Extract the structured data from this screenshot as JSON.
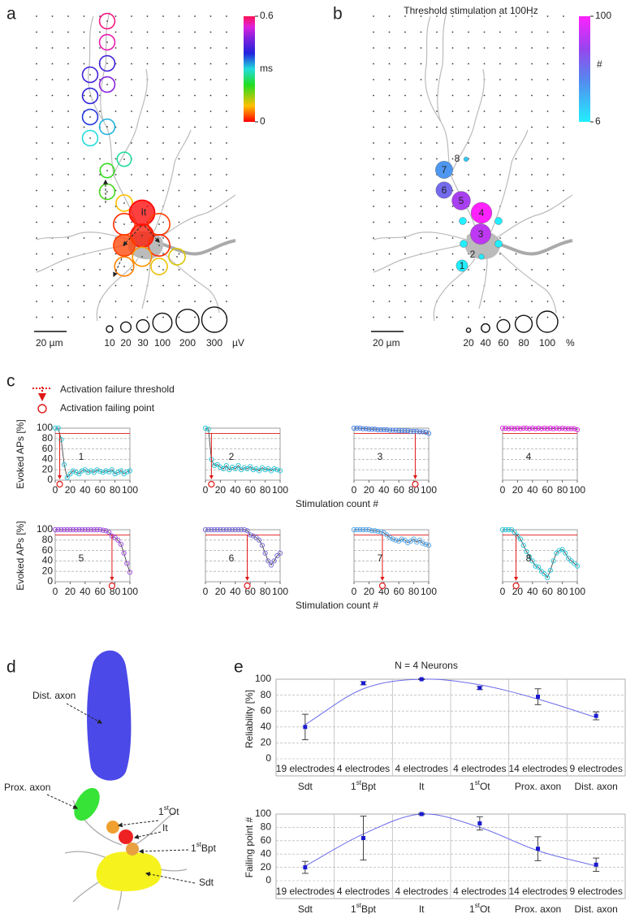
{
  "panel_labels": [
    "a",
    "b",
    "c",
    "d",
    "e"
  ],
  "panel_a": {
    "colorbar": {
      "min": 0,
      "max": 0.6,
      "unit": "ms"
    },
    "size_legend": {
      "values": [
        10,
        20,
        30,
        100,
        200,
        300
      ],
      "unit": "µV"
    },
    "scale_bar": "20 µm",
    "marker_label": "It",
    "electrodes": {
      "latency": [
        0.58,
        0.56,
        0.42,
        0.48,
        0.42,
        0.4,
        0.38,
        0.32,
        0.3,
        0.27,
        0.2,
        0.19,
        0.09,
        0,
        0.02,
        0.03,
        0.01,
        0.03,
        0.02,
        0.07,
        0.06,
        0.11,
        0.1
      ],
      "amplitude": [
        50,
        50,
        50,
        50,
        50,
        50,
        50,
        50,
        50,
        40,
        40,
        50,
        60,
        300,
        150,
        150,
        200,
        150,
        150,
        100,
        100,
        60,
        60
      ]
    }
  },
  "panel_b": {
    "title": "Threshold stimulation at 100Hz",
    "colorbar": {
      "min": 6,
      "max": 100,
      "unit": "#"
    },
    "size_legend": {
      "values": [
        20,
        40,
        60,
        80,
        100
      ],
      "unit": "%"
    },
    "scale_bar": "20 µm",
    "electrodes": {
      "labels": [
        "1",
        "2",
        "3",
        "4",
        "5",
        "6",
        "7",
        "8",
        null,
        null,
        null,
        null
      ],
      "reliability": [
        55,
        25,
        97,
        99,
        88,
        78,
        82,
        22,
        35,
        35,
        35,
        35
      ],
      "failing_point": [
        6,
        8,
        82,
        100,
        76,
        56,
        38,
        18,
        6,
        6,
        6,
        6
      ]
    }
  },
  "panel_c": {
    "legend": [
      "Activation failure threshold",
      "Activation failing point"
    ],
    "xlabel": "Stimulation count #",
    "ylabel": "Evoked APs [%]"
  },
  "panel_d": {
    "labels": [
      "Dist. axon",
      "Prox. axon",
      "1stOt",
      "It",
      "1stBpt",
      "Sdt"
    ]
  },
  "chart_data": [
    {
      "type": "line",
      "label": "1",
      "x": [
        0,
        4,
        8,
        12,
        16,
        20,
        24,
        28,
        32,
        36,
        40,
        44,
        48,
        52,
        56,
        60,
        64,
        68,
        72,
        76,
        80,
        84,
        88,
        92,
        96,
        100
      ],
      "series": [
        {
          "color": "#2cc6d8",
          "values": [
            100,
            100,
            78,
            30,
            5,
            12,
            18,
            15,
            12,
            18,
            20,
            15,
            18,
            15,
            20,
            17,
            15,
            18,
            16,
            20,
            12,
            15,
            18,
            12,
            16,
            18
          ]
        }
      ],
      "threshold": 90,
      "failing_point": 6,
      "xlim": [
        0,
        100
      ],
      "ylim": [
        0,
        100
      ],
      "xticks": [
        0,
        20,
        40,
        60,
        80,
        100
      ],
      "yticks": [
        0,
        20,
        40,
        60,
        80,
        100
      ]
    },
    {
      "type": "line",
      "label": "2",
      "x": [
        0,
        4,
        8,
        12,
        16,
        20,
        24,
        28,
        32,
        36,
        40,
        44,
        48,
        52,
        56,
        60,
        64,
        68,
        72,
        76,
        80,
        84,
        88,
        92,
        96,
        100
      ],
      "series": [
        {
          "color": "#30c8d6",
          "values": [
            100,
            98,
            40,
            28,
            30,
            25,
            22,
            28,
            20,
            25,
            22,
            28,
            20,
            24,
            22,
            26,
            20,
            22,
            18,
            24,
            20,
            22,
            18,
            22,
            20,
            18
          ]
        }
      ],
      "threshold": 90,
      "failing_point": 8,
      "xlim": [
        0,
        100
      ],
      "ylim": [
        0,
        100
      ],
      "xticks": [
        0,
        20,
        40,
        60,
        80,
        100
      ],
      "yticks": [
        0,
        20,
        40,
        60,
        80,
        100
      ]
    },
    {
      "type": "line",
      "label": "3",
      "x": [
        0,
        4,
        8,
        12,
        16,
        20,
        24,
        28,
        32,
        36,
        40,
        44,
        48,
        52,
        56,
        60,
        64,
        68,
        72,
        76,
        80,
        84,
        88,
        92,
        96,
        100
      ],
      "series": [
        {
          "color": "#4d84e6",
          "values": [
            100,
            100,
            100,
            99,
            99,
            98,
            98,
            98,
            97,
            97,
            97,
            97,
            96,
            96,
            96,
            95,
            95,
            95,
            95,
            94,
            94,
            94,
            93,
            93,
            92,
            90
          ]
        }
      ],
      "threshold": 90,
      "failing_point": 82,
      "xlim": [
        0,
        100
      ],
      "ylim": [
        0,
        100
      ],
      "xticks": [
        0,
        20,
        40,
        60,
        80,
        100
      ],
      "yticks": [
        0,
        20,
        40,
        60,
        80,
        100
      ]
    },
    {
      "type": "line",
      "label": "4",
      "x": [
        0,
        4,
        8,
        12,
        16,
        20,
        24,
        28,
        32,
        36,
        40,
        44,
        48,
        52,
        56,
        60,
        64,
        68,
        72,
        76,
        80,
        84,
        88,
        92,
        96,
        100
      ],
      "series": [
        {
          "color": "#e02ee0",
          "values": [
            100,
            100,
            99,
            100,
            99,
            100,
            99,
            100,
            100,
            99,
            100,
            99,
            100,
            99,
            100,
            99,
            100,
            99,
            100,
            99,
            100,
            99,
            99,
            99,
            99,
            97
          ]
        }
      ],
      "threshold": 90,
      "xlim": [
        0,
        100
      ],
      "ylim": [
        0,
        100
      ],
      "xticks": [
        0,
        20,
        40,
        60,
        80,
        100
      ],
      "yticks": [
        0,
        20,
        40,
        60,
        80,
        100
      ]
    },
    {
      "type": "line",
      "label": "5",
      "x": [
        0,
        4,
        8,
        12,
        16,
        20,
        24,
        28,
        32,
        36,
        40,
        44,
        48,
        52,
        56,
        60,
        64,
        68,
        72,
        76,
        80,
        84,
        88,
        92,
        96,
        100
      ],
      "series": [
        {
          "color": "#a64ee0",
          "values": [
            100,
            100,
            100,
            100,
            100,
            100,
            100,
            100,
            100,
            100,
            100,
            100,
            100,
            100,
            100,
            100,
            99,
            98,
            95,
            88,
            85,
            80,
            72,
            55,
            35,
            18
          ]
        }
      ],
      "threshold": 90,
      "failing_point": 76,
      "xlim": [
        0,
        100
      ],
      "ylim": [
        0,
        100
      ],
      "xticks": [
        0,
        20,
        40,
        60,
        80,
        100
      ],
      "yticks": [
        0,
        20,
        40,
        60,
        80,
        100
      ]
    },
    {
      "type": "line",
      "label": "6",
      "x": [
        0,
        4,
        8,
        12,
        16,
        20,
        24,
        28,
        32,
        36,
        40,
        44,
        48,
        52,
        56,
        60,
        64,
        68,
        72,
        76,
        80,
        84,
        88,
        92,
        96,
        100
      ],
      "series": [
        {
          "color": "#7b6fd8",
          "values": [
            100,
            100,
            100,
            100,
            100,
            100,
            100,
            100,
            100,
            100,
            100,
            100,
            100,
            100,
            98,
            90,
            88,
            85,
            80,
            70,
            55,
            40,
            32,
            40,
            50,
            55
          ]
        }
      ],
      "threshold": 90,
      "failing_point": 56,
      "xlim": [
        0,
        100
      ],
      "ylim": [
        0,
        100
      ],
      "xticks": [
        0,
        20,
        40,
        60,
        80,
        100
      ],
      "yticks": [
        0,
        20,
        40,
        60,
        80,
        100
      ]
    },
    {
      "type": "line",
      "label": "7",
      "x": [
        0,
        4,
        8,
        12,
        16,
        20,
        24,
        28,
        32,
        36,
        40,
        44,
        48,
        52,
        56,
        60,
        64,
        68,
        72,
        76,
        80,
        84,
        88,
        92,
        96,
        100
      ],
      "series": [
        {
          "color": "#58a8ec",
          "values": [
            100,
            100,
            100,
            100,
            100,
            100,
            98,
            98,
            97,
            96,
            94,
            90,
            85,
            82,
            80,
            78,
            82,
            80,
            75,
            78,
            82,
            76,
            80,
            74,
            72,
            70
          ]
        }
      ],
      "threshold": 90,
      "failing_point": 38,
      "xlim": [
        0,
        100
      ],
      "ylim": [
        0,
        100
      ],
      "xticks": [
        0,
        20,
        40,
        60,
        80,
        100
      ],
      "yticks": [
        0,
        20,
        40,
        60,
        80,
        100
      ]
    },
    {
      "type": "line",
      "label": "8",
      "x": [
        0,
        4,
        8,
        12,
        16,
        20,
        24,
        28,
        32,
        36,
        40,
        44,
        48,
        52,
        56,
        60,
        64,
        68,
        72,
        76,
        80,
        84,
        88,
        92,
        96,
        100
      ],
      "series": [
        {
          "color": "#30cadc",
          "values": [
            100,
            100,
            100,
            100,
            95,
            88,
            82,
            70,
            58,
            48,
            40,
            30,
            28,
            20,
            15,
            8,
            22,
            40,
            55,
            60,
            62,
            55,
            45,
            40,
            35,
            30
          ]
        }
      ],
      "threshold": 90,
      "failing_point": 18,
      "xlim": [
        0,
        100
      ],
      "ylim": [
        0,
        100
      ],
      "xticks": [
        0,
        20,
        40,
        60,
        80,
        100
      ],
      "yticks": [
        0,
        20,
        40,
        60,
        80,
        100
      ]
    },
    {
      "type": "errorbar",
      "title": "N = 4 Neurons",
      "ylabel": "Reliability  [%]",
      "categories": [
        "Sdt",
        "1stBpt",
        "It",
        "1stOt",
        "Prox. axon",
        "Dist. axon"
      ],
      "annotations": [
        "19 electrodes",
        "4 electrodes",
        "4 electrodes",
        "4 electrodes",
        "14 electrodes",
        "9 electrodes"
      ],
      "values": [
        40,
        95,
        100,
        89,
        78,
        54
      ],
      "errors": [
        16,
        2,
        0.5,
        2,
        10,
        5
      ],
      "fit": [
        43,
        88,
        100,
        93,
        75,
        52
      ],
      "color": "#1a1ad0",
      "fit_color": "#6b6bea",
      "ylim": [
        0,
        100
      ],
      "yticks": [
        0,
        20,
        40,
        60,
        80,
        100
      ]
    },
    {
      "type": "errorbar",
      "ylabel": "Failing point  #",
      "categories": [
        "Sdt",
        "1stBpt",
        "It",
        "1stOt",
        "Prox. axon",
        "Dist. axon"
      ],
      "annotations": [
        "19 electrodes",
        "4 electrodes",
        "4 electrodes",
        "4 electrodes",
        "14 electrodes",
        "9 electrodes"
      ],
      "values": [
        20,
        64,
        100,
        86,
        48,
        24
      ],
      "errors": [
        9,
        33,
        1,
        10,
        18,
        10
      ],
      "fit": [
        22,
        70,
        100,
        80,
        45,
        22
      ],
      "color": "#1a1ad0",
      "fit_color": "#6b6bea",
      "ylim": [
        0,
        100
      ],
      "yticks": [
        0,
        20,
        40,
        60,
        80,
        100
      ]
    }
  ]
}
